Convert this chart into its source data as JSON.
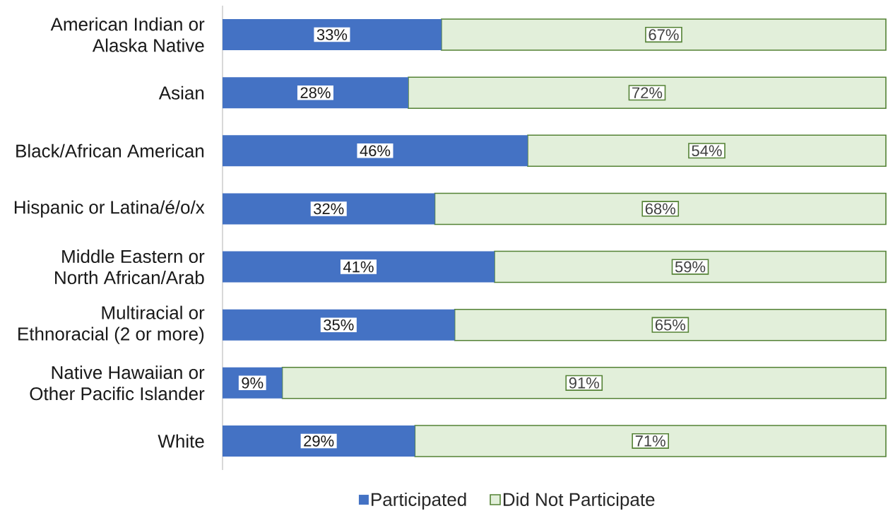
{
  "chart_data": {
    "type": "bar",
    "orientation": "horizontal",
    "stacked": true,
    "categories": [
      "American Indian or Alaska Native",
      "Asian",
      "Black/African American",
      "Hispanic or Latina/é/o/x",
      "Middle Eastern or North African/Arab",
      "Multiracial or Ethnoracial (2 or more)",
      "Native Hawaiian or Other Pacific Islander",
      "White"
    ],
    "series": [
      {
        "name": "Participated",
        "color": "#4472c4",
        "values": [
          33,
          28,
          46,
          32,
          41,
          35,
          9,
          29
        ],
        "value_labels": [
          "33%",
          "28%",
          "46%",
          "32%",
          "41%",
          "35%",
          "9%",
          "29%"
        ]
      },
      {
        "name": "Did Not Participate",
        "color": "#e2efda",
        "values": [
          67,
          72,
          54,
          68,
          59,
          65,
          91,
          71
        ],
        "value_labels": [
          "67%",
          "72%",
          "54%",
          "68%",
          "59%",
          "65%",
          "91%",
          "71%"
        ]
      }
    ],
    "legend": "bottom",
    "tick_labels": "y"
  }
}
